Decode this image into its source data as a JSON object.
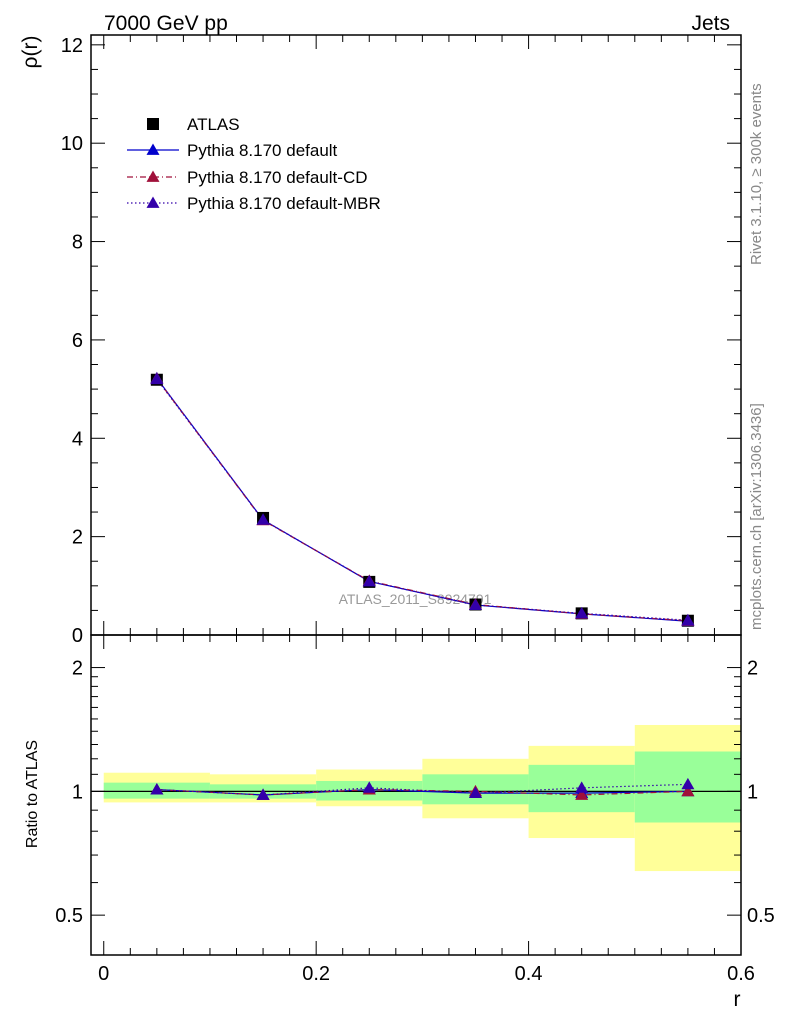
{
  "header": {
    "energy_label": "7000 GeV pp",
    "category_label": "Jets"
  },
  "side_labels": {
    "rivet": "Rivet 3.1.10, ≥ 300k events",
    "mcplots": "mcplots.cern.ch [arXiv:1306.3436]"
  },
  "watermark": "ATLAS_2011_S8924791",
  "colors": {
    "data": "#000000",
    "default": "#0000cc",
    "cd": "#a0103a",
    "mbr": "#3300aa",
    "band_inner": "#99ff99",
    "band_outer": "#ffff99"
  },
  "chart_data": [
    {
      "type": "line",
      "panel": "main",
      "ylabel": "ρ(r)",
      "xlim": [
        -0.012,
        0.6
      ],
      "ylim": [
        0,
        12.2
      ],
      "yticks": [
        0,
        2,
        4,
        6,
        8,
        10,
        12
      ],
      "yticklabels": [
        "0",
        "2",
        "4",
        "6",
        "8",
        "10",
        "12"
      ],
      "x": [
        0.05,
        0.15,
        0.25,
        0.35,
        0.45,
        0.55
      ],
      "series": [
        {
          "name": "ATLAS",
          "style": "data",
          "values": [
            5.19,
            2.38,
            1.08,
            0.62,
            0.44,
            0.29
          ]
        },
        {
          "name": "Pythia 8.170 default",
          "style": "solid",
          "values": [
            5.22,
            2.34,
            1.09,
            0.61,
            0.43,
            0.28
          ]
        },
        {
          "name": "Pythia 8.170 default-CD",
          "style": "dashdot",
          "values": [
            5.21,
            2.33,
            1.1,
            0.62,
            0.43,
            0.29
          ]
        },
        {
          "name": "Pythia 8.170 default-MBR",
          "style": "dotted",
          "values": [
            5.2,
            2.34,
            1.09,
            0.61,
            0.44,
            0.3
          ]
        }
      ],
      "legend": "top-left",
      "grid": false
    },
    {
      "type": "line",
      "panel": "ratio",
      "ylabel": "Ratio to ATLAS",
      "xlabel": "r",
      "xlim": [
        -0.012,
        0.6
      ],
      "xticks": [
        0,
        0.2,
        0.4,
        0.6
      ],
      "xticklabels": [
        "0",
        "0.2",
        "0.4",
        "0.6"
      ],
      "ylim": [
        0.4,
        2.4
      ],
      "log_scale_y": true,
      "yticks": [
        0.5,
        1,
        2
      ],
      "yticklabels": [
        "0.5",
        "1",
        "2"
      ],
      "bins": [
        [
          0.0,
          0.1
        ],
        [
          0.1,
          0.2
        ],
        [
          0.2,
          0.3
        ],
        [
          0.3,
          0.4
        ],
        [
          0.4,
          0.5
        ],
        [
          0.5,
          0.6
        ]
      ],
      "band_inner": [
        [
          0.96,
          1.05
        ],
        [
          0.96,
          1.04
        ],
        [
          0.95,
          1.06
        ],
        [
          0.93,
          1.1
        ],
        [
          0.89,
          1.16
        ],
        [
          0.84,
          1.25
        ]
      ],
      "band_outer": [
        [
          0.94,
          1.11
        ],
        [
          0.94,
          1.1
        ],
        [
          0.92,
          1.13
        ],
        [
          0.86,
          1.2
        ],
        [
          0.77,
          1.29
        ],
        [
          0.64,
          1.45
        ]
      ],
      "x": [
        0.05,
        0.15,
        0.25,
        0.35,
        0.45,
        0.55
      ],
      "series": [
        {
          "name": "Pythia 8.170 default",
          "style": "solid",
          "values": [
            1.01,
            0.98,
            1.01,
            0.99,
            0.99,
            1.0
          ]
        },
        {
          "name": "Pythia 8.170 default-CD",
          "style": "dashdot",
          "values": [
            1.01,
            0.98,
            1.01,
            1.0,
            0.98,
            1.0
          ]
        },
        {
          "name": "Pythia 8.170 default-MBR",
          "style": "dotted",
          "values": [
            1.01,
            0.98,
            1.02,
            0.99,
            1.02,
            1.04
          ]
        }
      ]
    }
  ]
}
